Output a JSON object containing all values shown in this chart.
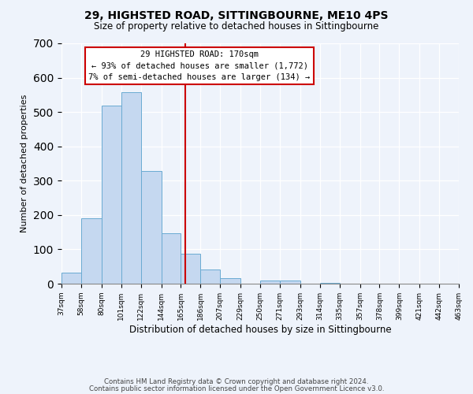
{
  "title": "29, HIGHSTED ROAD, SITTINGBOURNE, ME10 4PS",
  "subtitle": "Size of property relative to detached houses in Sittingbourne",
  "xlabel": "Distribution of detached houses by size in Sittingbourne",
  "ylabel": "Number of detached properties",
  "footer_lines": [
    "Contains HM Land Registry data © Crown copyright and database right 2024.",
    "Contains public sector information licensed under the Open Government Licence v3.0."
  ],
  "bar_edges": [
    37,
    58,
    80,
    101,
    122,
    144,
    165,
    186,
    207,
    229,
    250,
    271,
    293,
    314,
    335,
    357,
    378,
    399,
    421,
    442,
    463
  ],
  "bar_heights": [
    33,
    190,
    519,
    557,
    329,
    146,
    88,
    41,
    15,
    0,
    10,
    10,
    0,
    2,
    0,
    0,
    0,
    0,
    0,
    0
  ],
  "bar_color": "#c5d8f0",
  "bar_edge_color": "#6aabd2",
  "reference_line_x": 170,
  "reference_line_color": "#cc0000",
  "ylim": [
    0,
    700
  ],
  "xlim": [
    37,
    463
  ],
  "annotation_line1": "29 HIGHSTED ROAD: 170sqm",
  "annotation_line2": "← 93% of detached houses are smaller (1,772)",
  "annotation_line3": "7% of semi-detached houses are larger (134) →",
  "tick_labels": [
    "37sqm",
    "58sqm",
    "80sqm",
    "101sqm",
    "122sqm",
    "144sqm",
    "165sqm",
    "186sqm",
    "207sqm",
    "229sqm",
    "250sqm",
    "271sqm",
    "293sqm",
    "314sqm",
    "335sqm",
    "357sqm",
    "378sqm",
    "399sqm",
    "421sqm",
    "442sqm",
    "463sqm"
  ],
  "background_color": "#eef3fb"
}
